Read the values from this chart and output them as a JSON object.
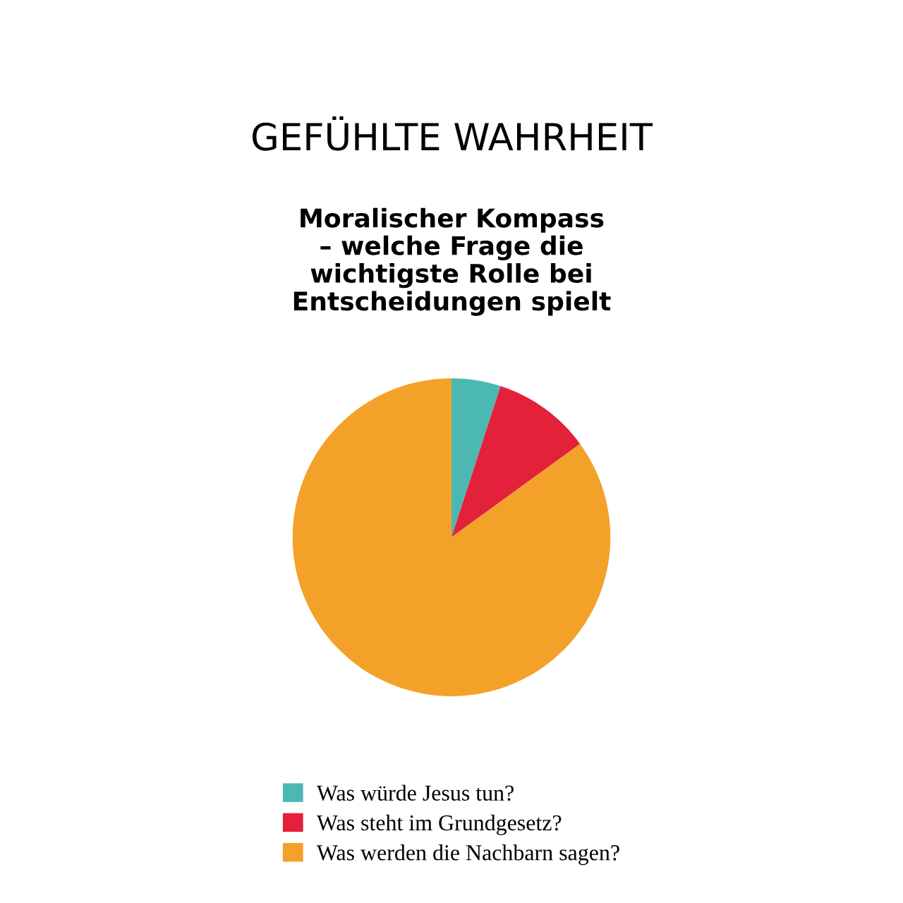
{
  "chart_data": {
    "type": "pie",
    "title": "GEFÜHLTE WAHRHEIT",
    "subtitle": "Moralischer Kompass\n– welche Frage die\nwichtigste Rolle bei\nEntscheidungen spielt",
    "categories": [
      "Was würde Jesus tun?",
      "Was steht im Grundgesetz?",
      "Was werden die Nachbarn sagen?"
    ],
    "values": [
      5,
      10,
      85
    ],
    "colors": [
      "#4cb8b2",
      "#e3213b",
      "#f4a12a"
    ],
    "legend": "bottom"
  }
}
